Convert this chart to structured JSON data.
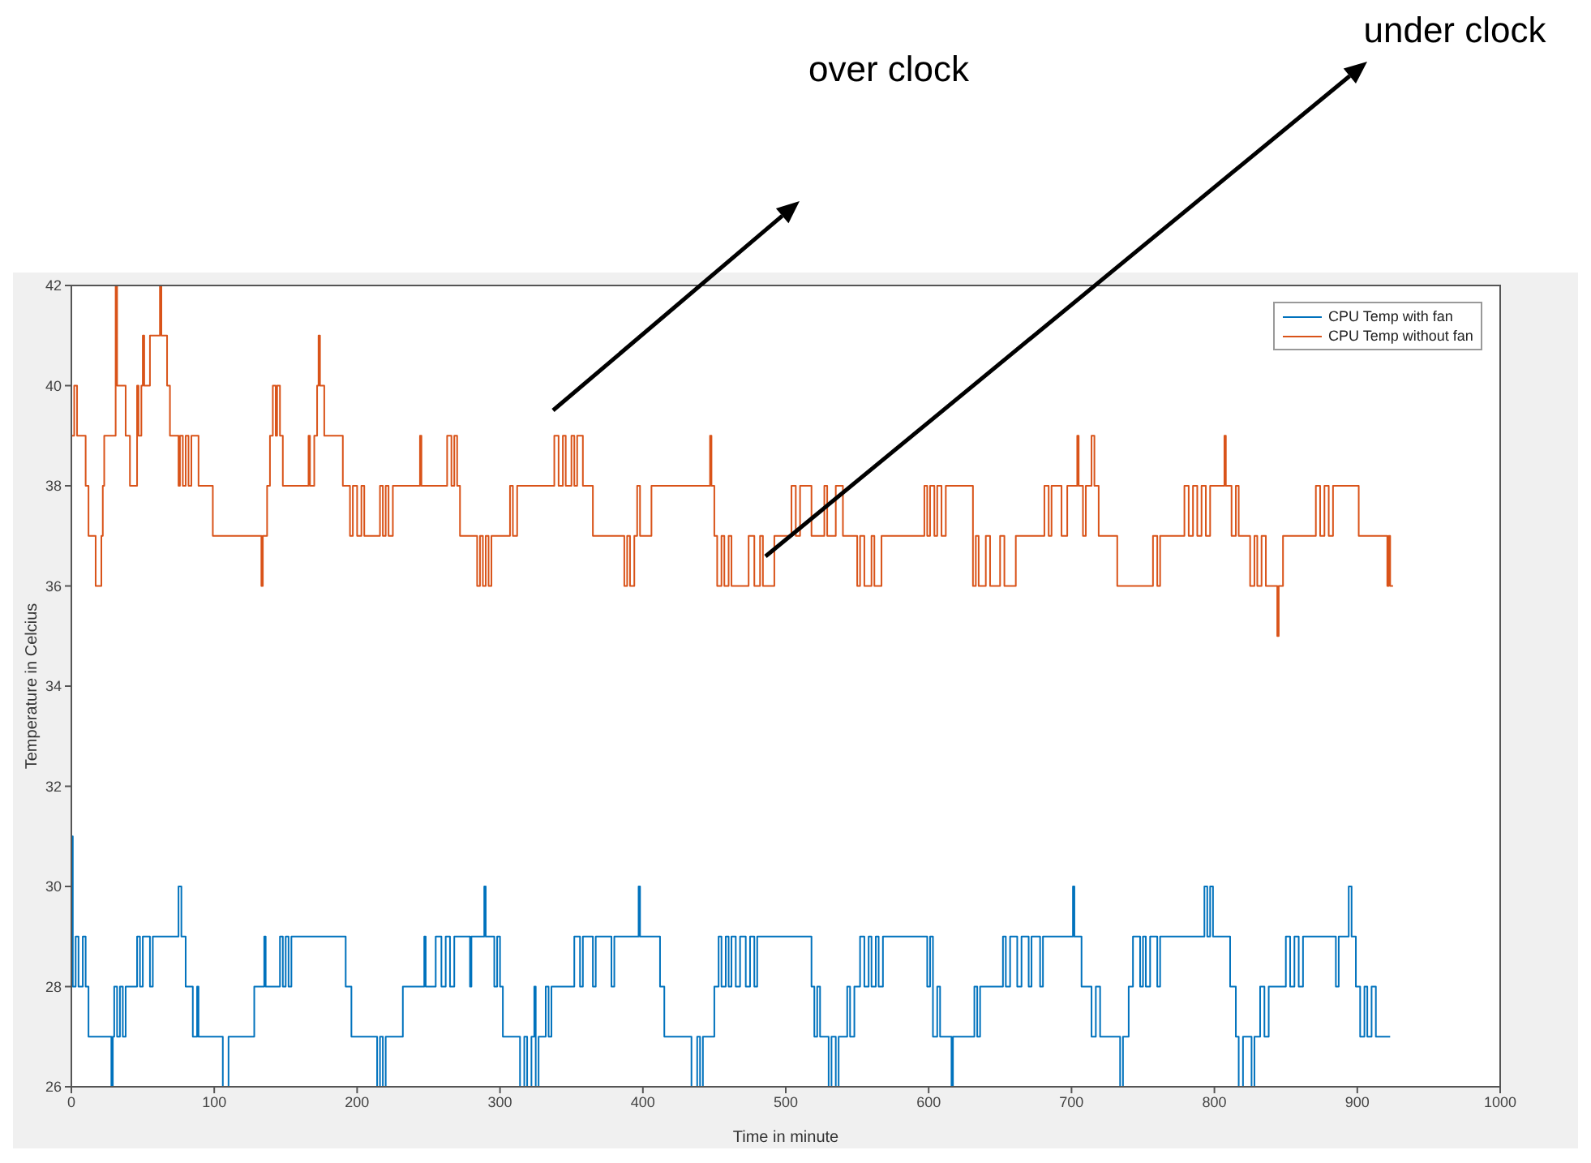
{
  "chart_data": {
    "type": "step",
    "xlabel": "Time in minute",
    "ylabel": "Temperature in Celcius",
    "xlim": [
      0,
      1000
    ],
    "xticks": [
      0,
      100,
      200,
      300,
      400,
      500,
      600,
      700,
      800,
      900,
      1000
    ],
    "ylim": [
      26,
      42
    ],
    "yticks": [
      26,
      28,
      30,
      32,
      34,
      36,
      38,
      40,
      42
    ],
    "legend": "top right",
    "marker": "none",
    "line_style": "solid",
    "annotations": [
      "over clock",
      "under clock"
    ],
    "series": [
      {
        "name": "CPU Temp with fan",
        "color": "#0072bd",
        "x": [
          0,
          1,
          3,
          5,
          8,
          10,
          12,
          27,
          28,
          29,
          30,
          32,
          34,
          36,
          38,
          45,
          46,
          48,
          50,
          55,
          57,
          74,
          75,
          77,
          80,
          85,
          88,
          89,
          105,
          106,
          110,
          125,
          128,
          134,
          135,
          136,
          145,
          146,
          148,
          150,
          152,
          154,
          190,
          192,
          196,
          213,
          214,
          216,
          218,
          220,
          230,
          232,
          246,
          247,
          248,
          255,
          259,
          262,
          265,
          268,
          278,
          279,
          280,
          288,
          289,
          290,
          295,
          296,
          298,
          300,
          302,
          313,
          314,
          317,
          319,
          322,
          324,
          325,
          327,
          330,
          332,
          334,
          336,
          350,
          352,
          356,
          358,
          365,
          367,
          378,
          380,
          396,
          397,
          398,
          410,
          412,
          415,
          433,
          434,
          438,
          440,
          442,
          448,
          450,
          453,
          455,
          458,
          460,
          462,
          465,
          468,
          472,
          475,
          478,
          480,
          516,
          518,
          520,
          522,
          524,
          530,
          532,
          535,
          537,
          543,
          545,
          548,
          552,
          555,
          558,
          560,
          563,
          565,
          568,
          597,
          599,
          601,
          603,
          606,
          608,
          615,
          616,
          617,
          630,
          632,
          634,
          636,
          650,
          652,
          654,
          657,
          662,
          665,
          670,
          672,
          678,
          680,
          700,
          701,
          702,
          707,
          712,
          714,
          717,
          720,
          733,
          734,
          736,
          740,
          743,
          748,
          750,
          752,
          755,
          760,
          762,
          792,
          793,
          795,
          797,
          799,
          808,
          811,
          815,
          817,
          820,
          826,
          828,
          832,
          835,
          838,
          848,
          850,
          853,
          856,
          859,
          862,
          880,
          885,
          887,
          893,
          894,
          896,
          899,
          902,
          905,
          907,
          910,
          913,
          923
        ],
        "values": [
          31,
          28,
          29,
          28,
          29,
          28,
          27,
          27,
          26,
          27,
          28,
          27,
          28,
          27,
          28,
          28,
          29,
          28,
          29,
          28,
          29,
          29,
          30,
          29,
          28,
          27,
          28,
          27,
          27,
          26,
          27,
          27,
          28,
          28,
          29,
          28,
          28,
          29,
          28,
          29,
          28,
          29,
          29,
          28,
          27,
          27,
          26,
          27,
          26,
          27,
          27,
          28,
          28,
          29,
          28,
          29,
          28,
          29,
          28,
          29,
          29,
          28,
          29,
          29,
          30,
          29,
          29,
          28,
          29,
          28,
          27,
          27,
          26,
          27,
          26,
          27,
          28,
          26,
          27,
          27,
          28,
          27,
          28,
          28,
          29,
          28,
          29,
          28,
          29,
          28,
          29,
          29,
          30,
          29,
          29,
          28,
          27,
          27,
          26,
          27,
          26,
          27,
          27,
          28,
          29,
          28,
          29,
          28,
          29,
          28,
          29,
          28,
          29,
          28,
          29,
          29,
          28,
          27,
          28,
          27,
          26,
          27,
          26,
          27,
          28,
          27,
          28,
          29,
          28,
          29,
          28,
          29,
          28,
          29,
          29,
          28,
          29,
          27,
          28,
          27,
          27,
          26,
          27,
          27,
          28,
          27,
          28,
          28,
          29,
          28,
          29,
          28,
          29,
          28,
          29,
          28,
          29,
          29,
          30,
          29,
          28,
          28,
          27,
          28,
          27,
          27,
          26,
          27,
          28,
          29,
          28,
          29,
          28,
          29,
          28,
          29,
          29,
          30,
          29,
          30,
          29,
          29,
          28,
          27,
          26,
          27,
          26,
          27,
          28,
          27,
          28,
          28,
          29,
          28,
          29,
          28,
          29,
          29,
          28,
          29,
          29,
          30,
          29,
          28,
          27,
          28,
          27,
          28,
          27,
          27
        ]
      },
      {
        "name": "CPU Temp without fan",
        "color": "#d95319",
        "x": [
          0,
          2,
          4,
          8,
          10,
          12,
          17,
          21,
          22,
          23,
          29,
          31,
          32,
          36,
          38,
          41,
          44,
          46,
          47,
          49,
          50,
          51,
          54,
          55,
          60,
          62,
          63,
          66,
          67,
          69,
          74,
          75,
          76,
          78,
          80,
          82,
          84,
          88,
          89,
          97,
          99,
          132,
          133,
          134,
          137,
          139,
          141,
          143,
          144,
          146,
          148,
          165,
          166,
          167,
          170,
          172,
          173,
          174,
          177,
          188,
          190,
          195,
          197,
          200,
          203,
          205,
          215,
          216,
          218,
          220,
          222,
          225,
          243,
          244,
          245,
          262,
          263,
          266,
          268,
          270,
          272,
          283,
          284,
          286,
          288,
          290,
          292,
          294,
          305,
          307,
          309,
          312,
          324,
          337,
          338,
          341,
          344,
          346,
          350,
          352,
          354,
          358,
          365,
          385,
          387,
          389,
          391,
          394,
          396,
          398,
          406,
          446,
          447,
          448,
          450,
          452,
          455,
          457,
          460,
          462,
          470,
          474,
          478,
          482,
          484,
          490,
          492,
          500,
          504,
          507,
          510,
          515,
          518,
          525,
          527,
          529,
          535,
          540,
          546,
          550,
          552,
          555,
          560,
          562,
          567,
          582,
          597,
          599,
          601,
          604,
          606,
          609,
          612,
          625,
          631,
          633,
          635,
          640,
          643,
          650,
          653,
          661,
          679,
          681,
          684,
          686,
          690,
          693,
          697,
          700,
          704,
          705,
          708,
          710,
          714,
          716,
          719,
          732,
          757,
          760,
          762,
          779,
          782,
          785,
          788,
          791,
          794,
          797,
          800,
          807,
          808,
          812,
          815,
          817,
          825,
          828,
          830,
          833,
          836,
          840,
          844,
          845,
          848,
          871,
          874,
          877,
          880,
          883,
          896,
          901,
          920,
          921,
          922,
          923,
          925
        ],
        "values": [
          39,
          40,
          39,
          39,
          38,
          37,
          36,
          37,
          38,
          39,
          39,
          42,
          40,
          40,
          39,
          38,
          38,
          40,
          39,
          40,
          41,
          40,
          40,
          41,
          41,
          42,
          41,
          41,
          40,
          39,
          39,
          38,
          39,
          38,
          39,
          38,
          39,
          39,
          38,
          38,
          37,
          37,
          36,
          37,
          38,
          39,
          40,
          39,
          40,
          39,
          38,
          38,
          39,
          38,
          39,
          40,
          41,
          40,
          39,
          39,
          38,
          37,
          38,
          37,
          38,
          37,
          37,
          38,
          37,
          38,
          37,
          38,
          38,
          39,
          38,
          38,
          39,
          38,
          39,
          38,
          37,
          37,
          36,
          37,
          36,
          37,
          36,
          37,
          37,
          38,
          37,
          38,
          38,
          38,
          39,
          38,
          39,
          38,
          39,
          38,
          39,
          38,
          37,
          37,
          36,
          37,
          36,
          37,
          38,
          37,
          38,
          38,
          39,
          38,
          37,
          36,
          37,
          36,
          37,
          36,
          36,
          37,
          36,
          37,
          36,
          36,
          37,
          37,
          38,
          37,
          38,
          38,
          37,
          37,
          38,
          37,
          38,
          37,
          37,
          36,
          37,
          36,
          37,
          36,
          37,
          37,
          38,
          37,
          38,
          37,
          38,
          37,
          38,
          38,
          36,
          37,
          36,
          37,
          36,
          37,
          36,
          37,
          37,
          38,
          37,
          38,
          38,
          37,
          38,
          38,
          39,
          38,
          37,
          38,
          39,
          38,
          37,
          36,
          37,
          36,
          37,
          38,
          37,
          38,
          37,
          38,
          37,
          38,
          38,
          39,
          38,
          37,
          38,
          37,
          36,
          37,
          36,
          37,
          36,
          36,
          35,
          36,
          37,
          38,
          37,
          38,
          37,
          38,
          38,
          37,
          37,
          36,
          37,
          36,
          36
        ]
      }
    ]
  }
}
